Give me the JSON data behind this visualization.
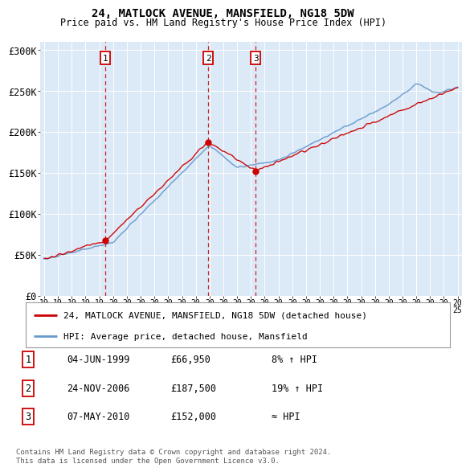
{
  "title": "24, MATLOCK AVENUE, MANSFIELD, NG18 5DW",
  "subtitle": "Price paid vs. HM Land Registry's House Price Index (HPI)",
  "ylim": [
    0,
    310000
  ],
  "yticks": [
    0,
    50000,
    100000,
    150000,
    200000,
    250000,
    300000
  ],
  "ytick_labels": [
    "£0",
    "£50K",
    "£100K",
    "£150K",
    "£200K",
    "£250K",
    "£300K"
  ],
  "plot_bg_color": "#dce9f7",
  "sale_dates": [
    1999.42,
    2006.9,
    2010.35
  ],
  "sale_prices": [
    66950,
    187500,
    152000
  ],
  "sale_labels": [
    "1",
    "2",
    "3"
  ],
  "legend_red": "24, MATLOCK AVENUE, MANSFIELD, NG18 5DW (detached house)",
  "legend_blue": "HPI: Average price, detached house, Mansfield",
  "table_rows": [
    [
      "1",
      "04-JUN-1999",
      "£66,950",
      "8% ↑ HPI"
    ],
    [
      "2",
      "24-NOV-2006",
      "£187,500",
      "19% ↑ HPI"
    ],
    [
      "3",
      "07-MAY-2010",
      "£152,000",
      "≈ HPI"
    ]
  ],
  "footnote1": "Contains HM Land Registry data © Crown copyright and database right 2024.",
  "footnote2": "This data is licensed under the Open Government Licence v3.0.",
  "red_color": "#cc0000",
  "blue_color": "#6699cc",
  "grid_color": "#ffffff",
  "xtick_years": [
    1995,
    1996,
    1997,
    1998,
    1999,
    2000,
    2001,
    2002,
    2003,
    2004,
    2005,
    2006,
    2007,
    2008,
    2009,
    2010,
    2011,
    2012,
    2013,
    2014,
    2015,
    2016,
    2017,
    2018,
    2019,
    2020,
    2021,
    2022,
    2023,
    2024,
    2025
  ]
}
